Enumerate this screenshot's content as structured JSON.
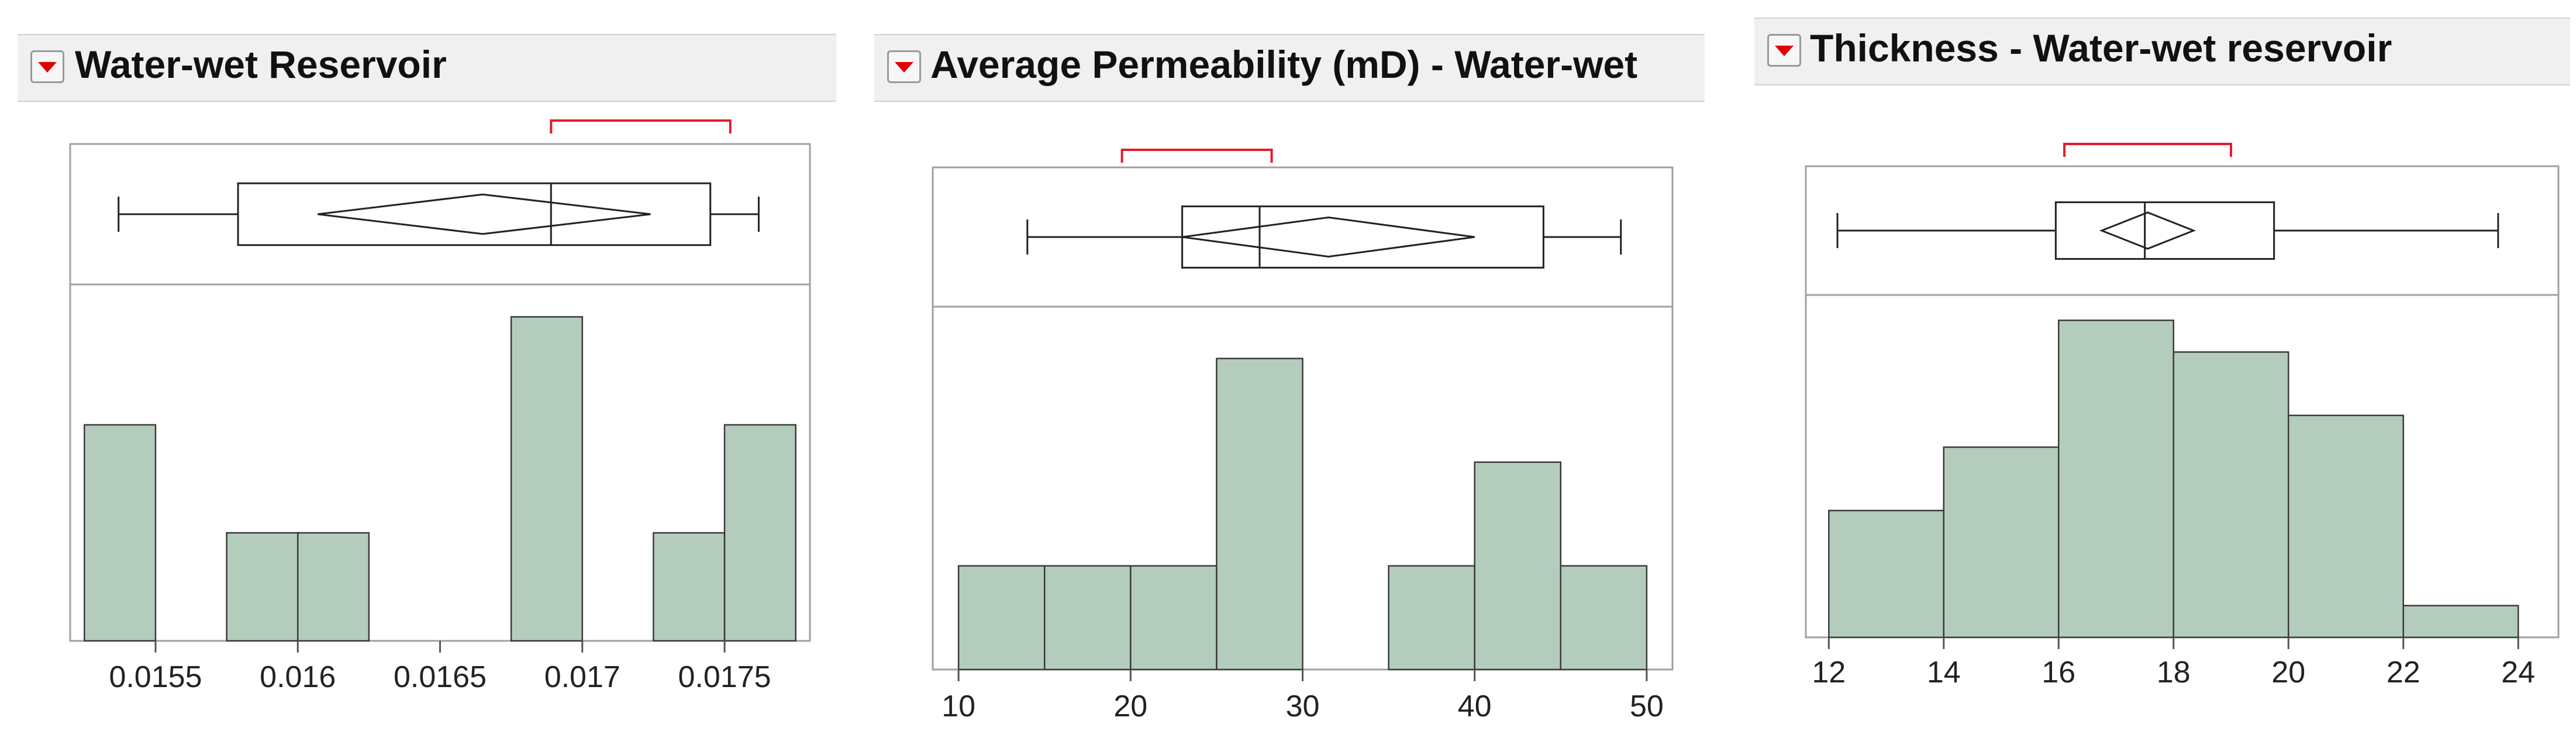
{
  "colors": {
    "bar_fill": "#b4ccbc",
    "bar_stroke": "#3a3a3a",
    "frame": "#a0a0a0",
    "shortest_half": "#e31c2c",
    "disclosure_icon": "#e00000"
  },
  "icons": {
    "disclosure": "red-triangle-menu-icon"
  },
  "panels": [
    {
      "title": "Water-wet Reservoir"
    },
    {
      "title": "Average Permeability (mD) - Water-wet"
    },
    {
      "title": "Thickness - Water-wet reservoir"
    }
  ],
  "chart_data": [
    {
      "type": "bar",
      "title": "Water-wet Reservoir",
      "xlim": [
        0.0152,
        0.0178
      ],
      "ylim": [
        0,
        3.3
      ],
      "xticks": [
        0.0155,
        0.016,
        0.0165,
        0.017,
        0.0175
      ],
      "xtick_labels": [
        "0.0155",
        "0.016",
        "0.0165",
        "0.017",
        "0.0175"
      ],
      "bins": [
        [
          0.01525,
          0.0155,
          2
        ],
        [
          0.01575,
          0.016,
          1
        ],
        [
          0.016,
          0.01625,
          1
        ],
        [
          0.01675,
          0.017,
          3
        ],
        [
          0.01725,
          0.0175,
          1
        ],
        [
          0.0175,
          0.01775,
          2
        ]
      ],
      "box_plot": {
        "whisker_low": 0.01537,
        "q1": 0.01579,
        "median": 0.01689,
        "q3": 0.01745,
        "whisker_high": 0.01762,
        "mean_diamond": [
          0.01607,
          0.01665,
          0.01724
        ],
        "shortest_half": [
          0.01689,
          0.01752
        ]
      }
    },
    {
      "type": "bar",
      "title": "Average Permeability (mD) - Water-wet",
      "xlim": [
        8.5,
        51.5
      ],
      "ylim": [
        0,
        3.5
      ],
      "xticks": [
        10,
        20,
        30,
        40,
        50
      ],
      "xtick_labels": [
        "10",
        "20",
        "30",
        "40",
        "50"
      ],
      "bins": [
        [
          10,
          15,
          1
        ],
        [
          15,
          20,
          1
        ],
        [
          20,
          25,
          1
        ],
        [
          25,
          30,
          3
        ],
        [
          35,
          40,
          1
        ],
        [
          40,
          45,
          2
        ],
        [
          45,
          50,
          1
        ]
      ],
      "box_plot": {
        "whisker_low": 14.0,
        "q1": 23.0,
        "median": 27.5,
        "q3": 44.0,
        "whisker_high": 48.5,
        "mean_diamond": [
          23.0,
          31.5,
          40.0
        ],
        "shortest_half": [
          19.5,
          28.2
        ]
      }
    },
    {
      "type": "bar",
      "title": "Thickness - Water-wet reservoir",
      "xlim": [
        11.6,
        24.7
      ],
      "ylim": [
        0,
        5.4
      ],
      "xticks": [
        12,
        14,
        16,
        18,
        20,
        22,
        24
      ],
      "xtick_labels": [
        "12",
        "14",
        "16",
        "18",
        "20",
        "22",
        "24"
      ],
      "bins": [
        [
          12,
          14,
          2
        ],
        [
          14,
          16,
          3
        ],
        [
          16,
          18,
          5
        ],
        [
          18,
          20,
          4.5
        ],
        [
          20,
          22,
          3.5
        ],
        [
          22,
          24,
          0.5
        ]
      ],
      "box_plot": {
        "whisker_low": 12.15,
        "q1": 15.95,
        "median": 17.5,
        "q3": 19.75,
        "whisker_high": 23.65,
        "mean_diamond": [
          16.75,
          17.55,
          18.35
        ],
        "shortest_half": [
          16.1,
          19.0
        ]
      }
    }
  ]
}
